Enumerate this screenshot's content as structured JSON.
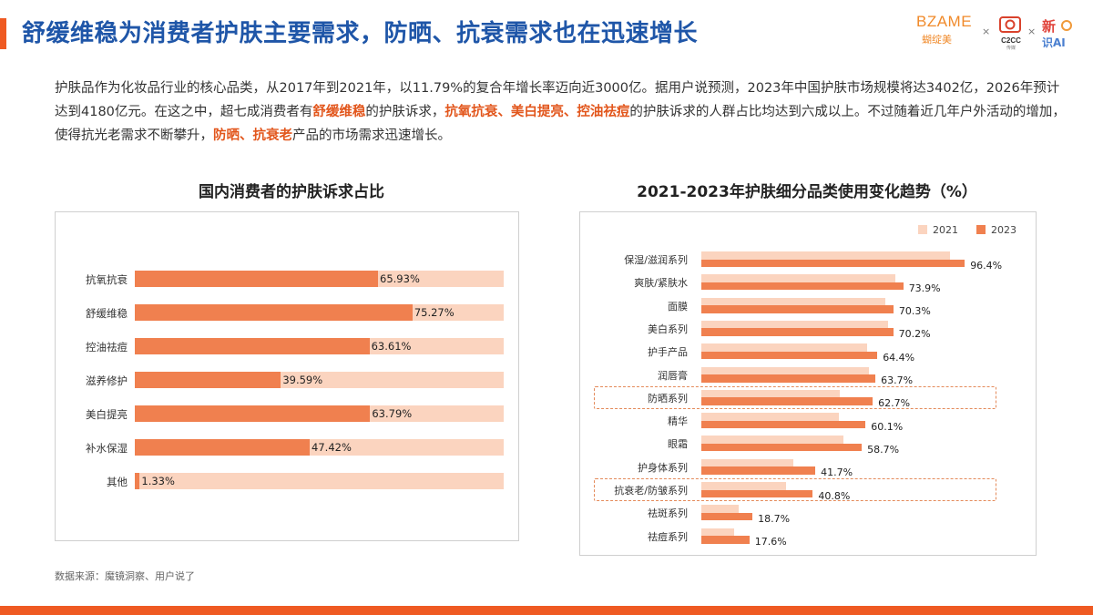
{
  "header": {
    "title": "舒缓维稳为消费者护肤主要需求，防晒、抗衰需求也在迅速增长",
    "accent_color": "#ef5a22",
    "title_color": "#1f56a8"
  },
  "logos": {
    "bzame": "BZAME",
    "bzame_sub": "蝴绽美",
    "sep": "×",
    "c2cc": "C2CC",
    "c2cc_sub": "传媒",
    "xin": "新",
    "xin_sub": "识AI"
  },
  "intro": {
    "p1": "护肤品作为化妆品行业的核心品类，从2017年到2021年，以11.79%的复合年增长率迈向近3000亿。据用户说预测，2023年中国护肤市场规模将达3402亿，2026年预计达到4180亿元。在这之中，超七成消费者有",
    "h1": "舒缓维稳",
    "p2": "的护肤诉求，",
    "h2": "抗氧抗衰、美白提亮、控油祛痘",
    "p3": "的护肤诉求的人群占比均达到六成以上。不过随着近几年户外活动的增加，使得抗光老需求不断攀升，",
    "h3": "防晒、抗衰老",
    "p4": "产品的市场需求迅速增长。"
  },
  "chart_data": [
    {
      "type": "bar",
      "orientation": "horizontal",
      "title": "国内消费者的护肤诉求占比",
      "categories": [
        "抗氧抗衰",
        "舒缓维稳",
        "控油祛痘",
        "滋养修护",
        "美白提亮",
        "补水保湿",
        "其他"
      ],
      "values": [
        65.93,
        75.27,
        63.61,
        39.59,
        63.79,
        47.42,
        1.33
      ],
      "value_labels": [
        "65.93%",
        "75.27%",
        "63.61%",
        "39.59%",
        "63.79%",
        "47.42%",
        "1.33%"
      ],
      "xlim": [
        0,
        100
      ],
      "colors": {
        "bar": "#f0804f",
        "track": "#fbd4bf"
      }
    },
    {
      "type": "bar",
      "orientation": "horizontal",
      "title": "2021-2023年护肤细分品类使用变化趋势（%）",
      "categories": [
        "保湿/滋润系列",
        "爽肤/紧肤水",
        "面膜",
        "美白系列",
        "护手产品",
        "润唇膏",
        "防晒系列",
        "精华",
        "眼霜",
        "护身体系列",
        "抗衰老/防皱系列",
        "祛斑系列",
        "祛痘系列"
      ],
      "series": [
        {
          "name": "2021",
          "values": [
            91.0,
            71.0,
            67.3,
            68.4,
            60.8,
            61.3,
            50.6,
            50.2,
            52.1,
            33.7,
            31.0,
            13.6,
            12.1
          ]
        },
        {
          "name": "2023",
          "values": [
            96.4,
            73.9,
            70.3,
            70.2,
            64.4,
            63.7,
            62.7,
            60.1,
            58.7,
            41.7,
            40.8,
            18.7,
            17.6
          ],
          "value_labels": [
            "96.4%",
            "73.9%",
            "70.3%",
            "70.2%",
            "64.4%",
            "63.7%",
            "62.7%",
            "60.1%",
            "58.7%",
            "41.7%",
            "40.8%",
            "18.7%",
            "17.6%"
          ]
        }
      ],
      "highlighted": [
        "防晒系列",
        "抗衰老/防皱系列"
      ],
      "xlim": [
        0,
        100
      ],
      "legend": "top-right",
      "colors": {
        "2021": "#fbd4bf",
        "2023": "#f0804f",
        "highlight_border": "#e48a5a"
      }
    }
  ],
  "footer": {
    "source": "数据来源：魔镜洞察、用户说了"
  }
}
